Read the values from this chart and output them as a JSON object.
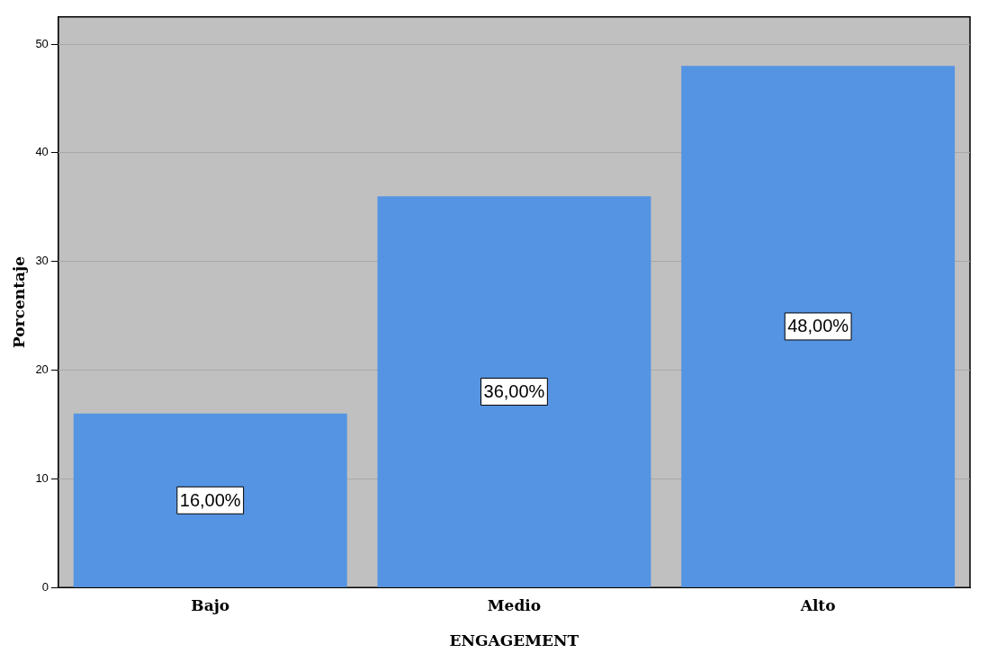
{
  "chart_data": {
    "type": "bar",
    "xlabel": "ENGAGEMENT",
    "ylabel": "Porcentaje",
    "categories": [
      "Bajo",
      "Medio",
      "Alto"
    ],
    "values": [
      16,
      36,
      48
    ],
    "value_labels": [
      "16,00%",
      "36,00%",
      "48,00%"
    ],
    "color": "#5594e3",
    "ylim": [
      0,
      52.5
    ],
    "yticks": [
      0,
      10,
      20,
      30,
      40,
      50
    ],
    "grid": "y",
    "legend": false
  }
}
